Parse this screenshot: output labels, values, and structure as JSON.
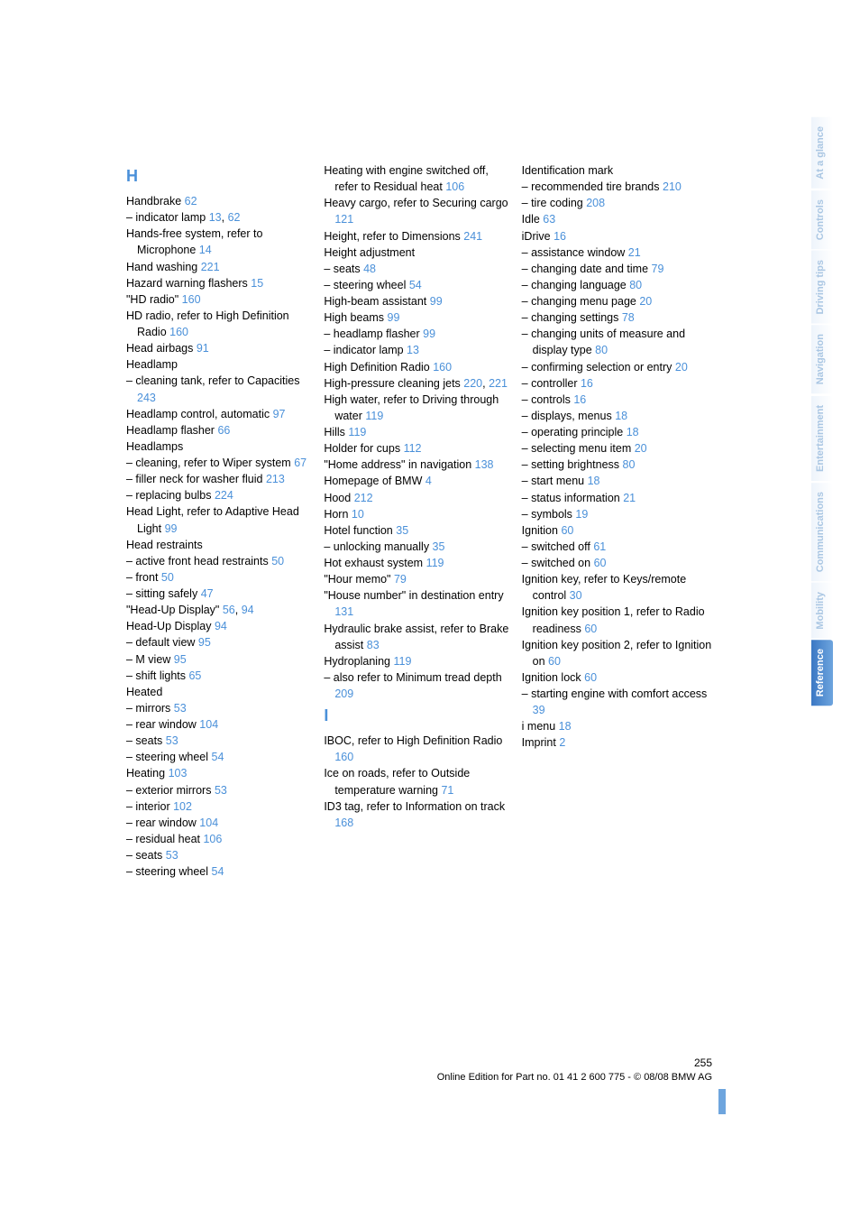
{
  "tabs": [
    {
      "label": "At a glance",
      "active": false
    },
    {
      "label": "Controls",
      "active": false
    },
    {
      "label": "Driving tips",
      "active": false
    },
    {
      "label": "Navigation",
      "active": false
    },
    {
      "label": "Entertainment",
      "active": false
    },
    {
      "label": "Communications",
      "active": false
    },
    {
      "label": "Mobility",
      "active": false
    },
    {
      "label": "Reference",
      "active": true
    }
  ],
  "sections": {
    "H": "H",
    "I": "I"
  },
  "col1": [
    {
      "t": "head",
      "v": "H"
    },
    {
      "t": "e",
      "txt": "Handbrake ",
      "pg": "62"
    },
    {
      "t": "e",
      "txt": "– indicator lamp ",
      "pg": "13, 62"
    },
    {
      "t": "e",
      "txt": "Hands-free system, refer to Microphone ",
      "pg": "14"
    },
    {
      "t": "e",
      "txt": "Hand washing ",
      "pg": "221"
    },
    {
      "t": "e",
      "txt": "Hazard warning flashers ",
      "pg": "15"
    },
    {
      "t": "e",
      "txt": "\"HD radio\" ",
      "pg": "160"
    },
    {
      "t": "e",
      "txt": "HD radio, refer to High Definition Radio ",
      "pg": "160"
    },
    {
      "t": "e",
      "txt": "Head airbags ",
      "pg": "91"
    },
    {
      "t": "e",
      "txt": "Headlamp",
      "pg": ""
    },
    {
      "t": "e",
      "txt": "– cleaning tank, refer to Capacities ",
      "pg": "243"
    },
    {
      "t": "e",
      "txt": "Headlamp control, automatic ",
      "pg": "97"
    },
    {
      "t": "e",
      "txt": "Headlamp flasher ",
      "pg": "66"
    },
    {
      "t": "e",
      "txt": "Headlamps",
      "pg": ""
    },
    {
      "t": "e",
      "txt": "– cleaning, refer to Wiper system ",
      "pg": "67"
    },
    {
      "t": "e",
      "txt": "– filler neck for washer fluid ",
      "pg": "213"
    },
    {
      "t": "e",
      "txt": "– replacing bulbs ",
      "pg": "224"
    },
    {
      "t": "e",
      "txt": "Head Light, refer to Adaptive Head Light ",
      "pg": "99"
    },
    {
      "t": "e",
      "txt": "Head restraints",
      "pg": ""
    },
    {
      "t": "e",
      "txt": "– active front head restraints ",
      "pg": "50"
    },
    {
      "t": "e",
      "txt": "– front ",
      "pg": "50"
    },
    {
      "t": "e",
      "txt": "– sitting safely ",
      "pg": "47"
    },
    {
      "t": "e",
      "txt": "\"Head-Up Display\" ",
      "pg": "56, 94"
    },
    {
      "t": "e",
      "txt": "Head-Up Display ",
      "pg": "94"
    },
    {
      "t": "e",
      "txt": "– default view ",
      "pg": "95"
    },
    {
      "t": "e",
      "txt": "– M view ",
      "pg": "95"
    },
    {
      "t": "e",
      "txt": "– shift lights ",
      "pg": "65"
    },
    {
      "t": "e",
      "txt": "Heated",
      "pg": ""
    },
    {
      "t": "e",
      "txt": "– mirrors ",
      "pg": "53"
    },
    {
      "t": "e",
      "txt": "– rear window ",
      "pg": "104"
    },
    {
      "t": "e",
      "txt": "– seats ",
      "pg": "53"
    },
    {
      "t": "e",
      "txt": "– steering wheel ",
      "pg": "54"
    },
    {
      "t": "e",
      "txt": "Heating ",
      "pg": "103"
    },
    {
      "t": "e",
      "txt": "– exterior mirrors ",
      "pg": "53"
    },
    {
      "t": "e",
      "txt": "– interior ",
      "pg": "102"
    },
    {
      "t": "e",
      "txt": "– rear window ",
      "pg": "104"
    },
    {
      "t": "e",
      "txt": "– residual heat ",
      "pg": "106"
    },
    {
      "t": "e",
      "txt": "– seats ",
      "pg": "53"
    },
    {
      "t": "e",
      "txt": "– steering wheel ",
      "pg": "54"
    }
  ],
  "col2": [
    {
      "t": "e",
      "txt": "Heating with engine switched off, refer to Residual heat ",
      "pg": "106"
    },
    {
      "t": "e",
      "txt": "Heavy cargo, refer to Securing cargo ",
      "pg": "121"
    },
    {
      "t": "e",
      "txt": "Height, refer to Dimensions ",
      "pg": "241"
    },
    {
      "t": "e",
      "txt": "Height adjustment",
      "pg": ""
    },
    {
      "t": "e",
      "txt": "– seats ",
      "pg": "48"
    },
    {
      "t": "e",
      "txt": "– steering wheel ",
      "pg": "54"
    },
    {
      "t": "e",
      "txt": "High-beam assistant ",
      "pg": "99"
    },
    {
      "t": "e",
      "txt": "High beams ",
      "pg": "99"
    },
    {
      "t": "e",
      "txt": "– headlamp flasher ",
      "pg": "99"
    },
    {
      "t": "e",
      "txt": "– indicator lamp ",
      "pg": "13"
    },
    {
      "t": "e",
      "txt": "High Definition Radio ",
      "pg": "160"
    },
    {
      "t": "e",
      "txt": "High-pressure cleaning jets ",
      "pg": "220, 221"
    },
    {
      "t": "e",
      "txt": "High water, refer to Driving through water ",
      "pg": "119"
    },
    {
      "t": "e",
      "txt": "Hills ",
      "pg": "119"
    },
    {
      "t": "e",
      "txt": "Holder for cups ",
      "pg": "112"
    },
    {
      "t": "e",
      "txt": "\"Home address\" in navigation ",
      "pg": "138"
    },
    {
      "t": "e",
      "txt": "Homepage of BMW ",
      "pg": "4"
    },
    {
      "t": "e",
      "txt": "Hood ",
      "pg": "212"
    },
    {
      "t": "e",
      "txt": "Horn ",
      "pg": "10"
    },
    {
      "t": "e",
      "txt": "Hotel function ",
      "pg": "35"
    },
    {
      "t": "e",
      "txt": "– unlocking manually ",
      "pg": "35"
    },
    {
      "t": "e",
      "txt": "Hot exhaust system ",
      "pg": "119"
    },
    {
      "t": "e",
      "txt": "\"Hour memo\" ",
      "pg": "79"
    },
    {
      "t": "e",
      "txt": "\"House number\" in destination entry ",
      "pg": "131"
    },
    {
      "t": "e",
      "txt": "Hydraulic brake assist, refer to Brake assist ",
      "pg": "83"
    },
    {
      "t": "e",
      "txt": "Hydroplaning ",
      "pg": "119"
    },
    {
      "t": "e",
      "txt": "– also refer to Minimum tread depth ",
      "pg": "209"
    },
    {
      "t": "head",
      "v": "I"
    },
    {
      "t": "e",
      "txt": "IBOC, refer to High Definition Radio ",
      "pg": "160"
    },
    {
      "t": "e",
      "txt": "Ice on roads, refer to Outside temperature warning ",
      "pg": "71"
    },
    {
      "t": "e",
      "txt": "ID3 tag, refer to Information on track ",
      "pg": "168"
    }
  ],
  "col3": [
    {
      "t": "e",
      "txt": "Identification mark",
      "pg": ""
    },
    {
      "t": "e",
      "txt": "– recommended tire brands ",
      "pg": "210"
    },
    {
      "t": "e",
      "txt": "– tire coding ",
      "pg": "208"
    },
    {
      "t": "e",
      "txt": "Idle ",
      "pg": "63"
    },
    {
      "t": "e",
      "txt": "iDrive ",
      "pg": "16"
    },
    {
      "t": "e",
      "txt": "– assistance window ",
      "pg": "21"
    },
    {
      "t": "e",
      "txt": "– changing date and time ",
      "pg": "79"
    },
    {
      "t": "e",
      "txt": "– changing language ",
      "pg": "80"
    },
    {
      "t": "e",
      "txt": "– changing menu page ",
      "pg": "20"
    },
    {
      "t": "e",
      "txt": "– changing settings ",
      "pg": "78"
    },
    {
      "t": "e",
      "txt": "– changing units of measure and display type ",
      "pg": "80"
    },
    {
      "t": "e",
      "txt": "– confirming selection or entry ",
      "pg": "20"
    },
    {
      "t": "e",
      "txt": "– controller ",
      "pg": "16"
    },
    {
      "t": "e",
      "txt": "– controls ",
      "pg": "16"
    },
    {
      "t": "e",
      "txt": "– displays, menus ",
      "pg": "18"
    },
    {
      "t": "e",
      "txt": "– operating principle ",
      "pg": "18"
    },
    {
      "t": "e",
      "txt": "– selecting menu item ",
      "pg": "20"
    },
    {
      "t": "e",
      "txt": "– setting brightness ",
      "pg": "80"
    },
    {
      "t": "e",
      "txt": "– start menu ",
      "pg": "18"
    },
    {
      "t": "e",
      "txt": "– status information ",
      "pg": "21"
    },
    {
      "t": "e",
      "txt": "– symbols ",
      "pg": "19"
    },
    {
      "t": "e",
      "txt": "Ignition ",
      "pg": "60"
    },
    {
      "t": "e",
      "txt": "– switched off ",
      "pg": "61"
    },
    {
      "t": "e",
      "txt": "– switched on ",
      "pg": "60"
    },
    {
      "t": "e",
      "txt": "Ignition key, refer to Keys/remote control ",
      "pg": "30"
    },
    {
      "t": "e",
      "txt": "Ignition key position 1, refer to Radio readiness ",
      "pg": "60"
    },
    {
      "t": "e",
      "txt": "Ignition key position 2, refer to Ignition on ",
      "pg": "60"
    },
    {
      "t": "e",
      "txt": "Ignition lock ",
      "pg": "60"
    },
    {
      "t": "e",
      "txt": "– starting engine with comfort access ",
      "pg": "39"
    },
    {
      "t": "e",
      "txt": "i menu ",
      "pg": "18"
    },
    {
      "t": "e",
      "txt": "Imprint ",
      "pg": "2"
    }
  ],
  "footer": {
    "pagenum": "255",
    "line": "Online Edition for Part no. 01 41 2 600 775 - © 08/08 BMW AG"
  }
}
